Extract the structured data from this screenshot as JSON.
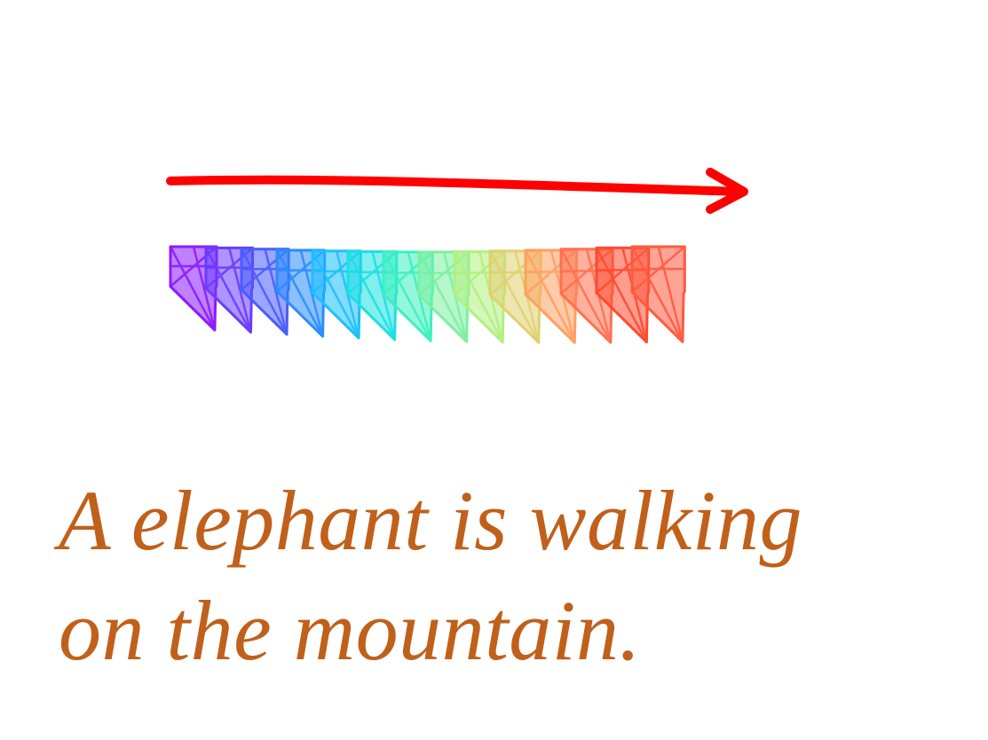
{
  "colors": {
    "background": "#ffffff",
    "arrow": "#ff0000",
    "caption_text": "#c0601a",
    "frame_gradient": [
      "#8a1cff",
      "#6a3cff",
      "#4a5cff",
      "#2a8cff",
      "#1cc0ff",
      "#1ce0e0",
      "#3cf0c0",
      "#7cf0a0",
      "#b0f080",
      "#e0d070",
      "#ffa060",
      "#ff7050",
      "#ff4a30",
      "#ff5a40"
    ]
  },
  "motion": {
    "direction": "left-to-right",
    "frame_count": 14,
    "arrow_icon": "arrow-right-icon",
    "frame_icon": "camera-frustum-icon"
  },
  "caption": {
    "line1": "A elephant is walking",
    "line2": "on the mountain."
  }
}
